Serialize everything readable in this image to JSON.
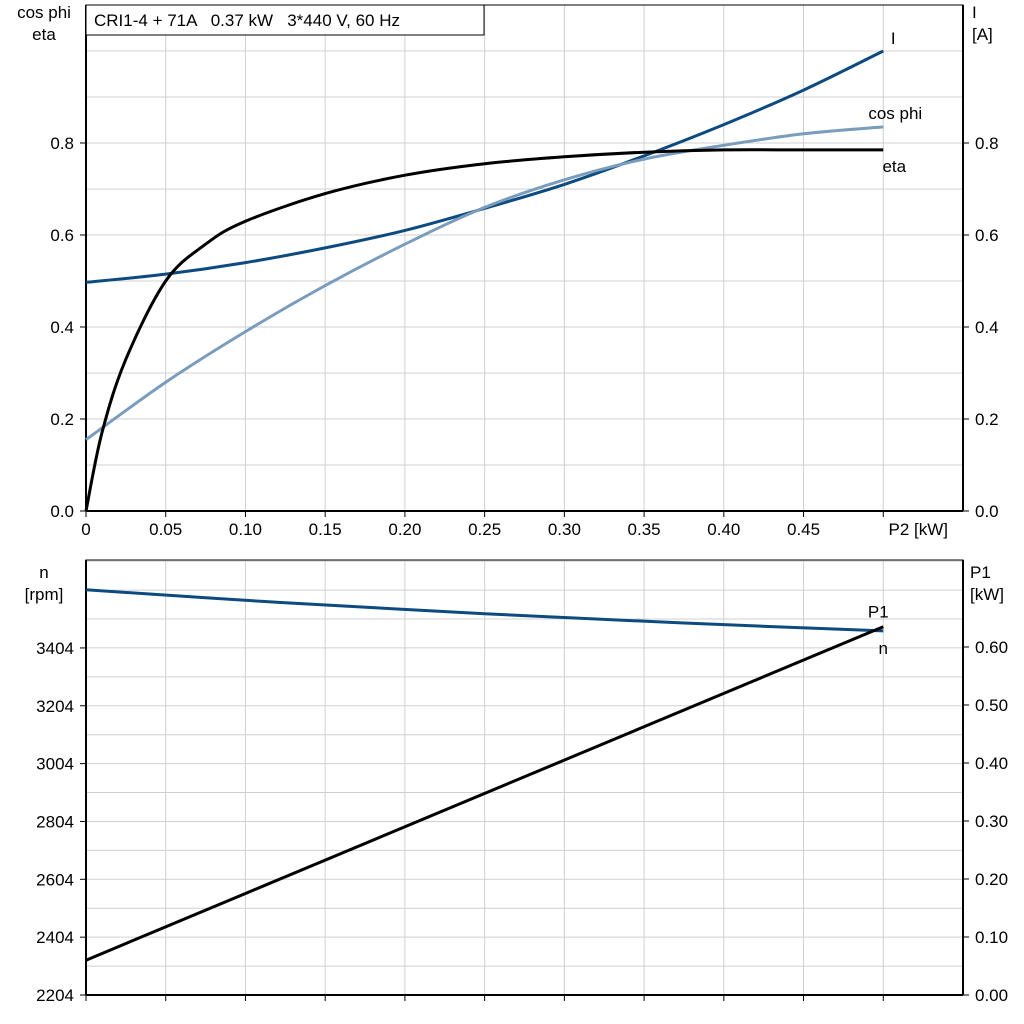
{
  "chart_data": [
    {
      "type": "line",
      "title": "CRI1-4 + 71A   0.37 kW   3*440 V, 60 Hz",
      "xlabel": "P2 [kW]",
      "ylabel_left": [
        "cos phi",
        "eta"
      ],
      "ylabel_right": [
        "I",
        "[A]"
      ],
      "xlim": [
        0,
        0.55
      ],
      "ylim_left": [
        0,
        1.1
      ],
      "ylim_right": [
        0,
        1.1
      ],
      "x_ticks": [
        "0",
        "0.05",
        "0.10",
        "0.15",
        "0.20",
        "0.25",
        "0.30",
        "0.35",
        "0.40",
        "0.45",
        "P2 [kW]"
      ],
      "y_ticks_left": [
        "0.0",
        "0.2",
        "0.4",
        "0.6",
        "0.8"
      ],
      "y_ticks_right": [
        "0.0",
        "0.2",
        "0.4",
        "0.6",
        "0.8"
      ],
      "grid": true,
      "series": [
        {
          "name": "I",
          "color": "#0d4a80",
          "axis": "right",
          "x": [
            0,
            0.05,
            0.1,
            0.15,
            0.2,
            0.25,
            0.3,
            0.35,
            0.4,
            0.45,
            0.5
          ],
          "y": [
            0.497,
            0.515,
            0.54,
            0.572,
            0.61,
            0.658,
            0.71,
            0.772,
            0.84,
            0.915,
            1.0
          ]
        },
        {
          "name": "cos phi",
          "color": "#7a9cbd",
          "axis": "left",
          "x": [
            0,
            0.05,
            0.1,
            0.15,
            0.2,
            0.25,
            0.3,
            0.35,
            0.4,
            0.45,
            0.5
          ],
          "y": [
            0.155,
            0.28,
            0.39,
            0.49,
            0.58,
            0.66,
            0.72,
            0.765,
            0.795,
            0.82,
            0.835
          ]
        },
        {
          "name": "eta",
          "color": "#000000",
          "axis": "left",
          "x": [
            0,
            0.01,
            0.025,
            0.05,
            0.075,
            0.1,
            0.15,
            0.2,
            0.25,
            0.3,
            0.35,
            0.4,
            0.45,
            0.5
          ],
          "y": [
            0,
            0.17,
            0.33,
            0.5,
            0.58,
            0.63,
            0.69,
            0.73,
            0.755,
            0.77,
            0.78,
            0.785,
            0.785,
            0.785
          ]
        }
      ]
    },
    {
      "type": "line",
      "ylabel_left": [
        "n",
        "[rpm]"
      ],
      "ylabel_right": [
        "P1",
        "[kW]"
      ],
      "xlim": [
        0,
        0.55
      ],
      "ylim_left": [
        2204,
        3708
      ],
      "ylim_right": [
        0,
        0.75
      ],
      "y_ticks_left": [
        "2204",
        "2404",
        "2604",
        "2804",
        "3004",
        "3204",
        "3404"
      ],
      "y_ticks_right": [
        "0.00",
        "0.10",
        "0.20",
        "0.30",
        "0.40",
        "0.50",
        "0.60"
      ],
      "grid": true,
      "series": [
        {
          "name": "n",
          "color": "#0d4a80",
          "axis": "left",
          "x": [
            0,
            0.125,
            0.25,
            0.375,
            0.5
          ],
          "y": [
            3605,
            3560,
            3522,
            3490,
            3463
          ]
        },
        {
          "name": "P1",
          "color": "#000000",
          "axis": "right",
          "x": [
            0,
            0.5
          ],
          "y": [
            0.06,
            0.635
          ]
        }
      ]
    }
  ]
}
